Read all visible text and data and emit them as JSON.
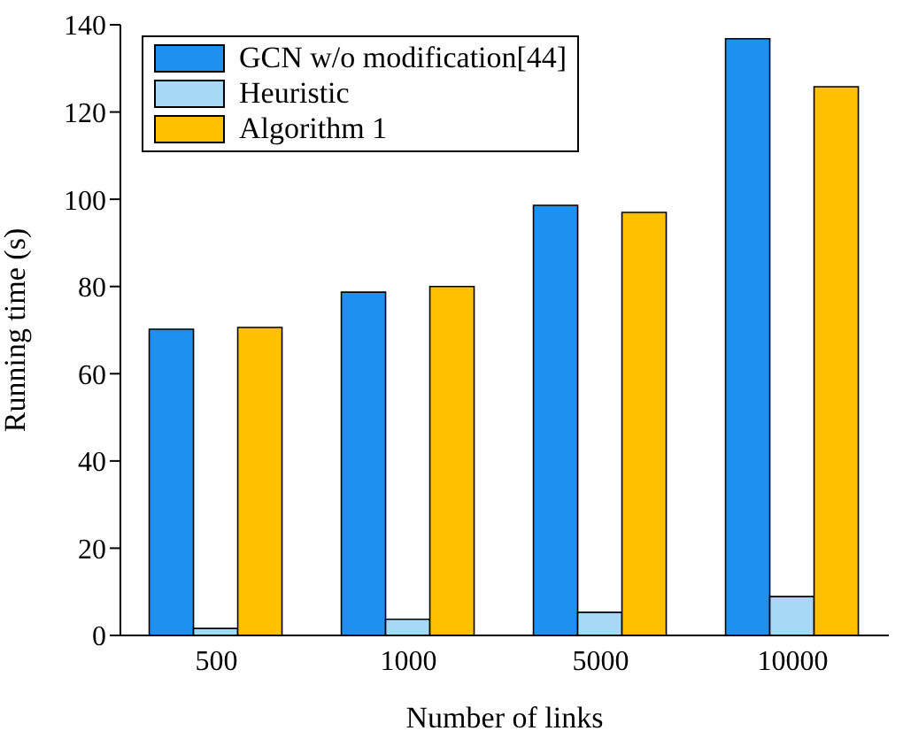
{
  "chart_data": {
    "type": "bar",
    "xlabel": "Number of links",
    "ylabel": "Running time (s)",
    "categories": [
      "500",
      "1000",
      "5000",
      "10000"
    ],
    "series": [
      {
        "name": "GCN w/o modification[44]",
        "color": "#1e90f0",
        "values": [
          70.2,
          78.7,
          98.6,
          136.8
        ]
      },
      {
        "name": "Heuristic",
        "color": "#a8d8f8",
        "values": [
          1.6,
          3.7,
          5.3,
          8.9
        ]
      },
      {
        "name": "Algorithm 1",
        "color": "#ffc000",
        "values": [
          70.6,
          80,
          97,
          125.8
        ]
      }
    ],
    "ylim": [
      0,
      140
    ],
    "yticks": [
      0,
      20,
      40,
      60,
      80,
      100,
      120,
      140
    ],
    "legend": "top left"
  }
}
